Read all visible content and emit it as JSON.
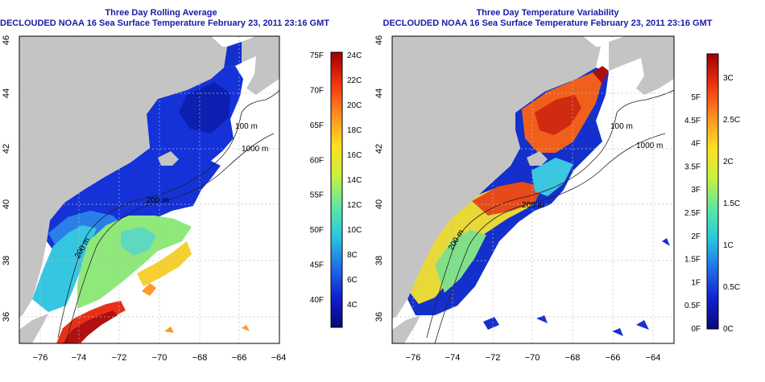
{
  "panels": [
    {
      "id": "average",
      "title": "Three Day Rolling Average",
      "subtitle": "DECLOUDED NOAA 16 Sea Surface Temperature February 23, 2011 23:16 GMT",
      "contour_labels": [
        "100 m",
        "1000 m",
        "200 m",
        "200 m"
      ],
      "colorbar": {
        "colors": [
          "#08087a",
          "#1020d0",
          "#1f70e8",
          "#27c8e0",
          "#5ee8a0",
          "#c8f040",
          "#ffe020",
          "#ff9020",
          "#f03010",
          "#a00000"
        ],
        "left_labels": [
          "75F",
          "70F",
          "65F",
          "60F",
          "55F",
          "50F",
          "45F",
          "40F"
        ],
        "right_labels": [
          "24C",
          "22C",
          "20C",
          "18C",
          "16C",
          "14C",
          "12C",
          "10C",
          "8C",
          "6C",
          "4C"
        ]
      }
    },
    {
      "id": "variability",
      "title": "Three Day Temperature Variability",
      "subtitle": "DECLOUDED NOAA 16 Sea Surface Temperature February 23, 2011 23:16 GMT",
      "contour_labels": [
        "100 m",
        "1000 m",
        "200 m",
        "200 m"
      ],
      "colorbar": {
        "colors": [
          "#08087a",
          "#1020d0",
          "#1f70e8",
          "#27c8e0",
          "#5ee8a0",
          "#c8f040",
          "#ffe020",
          "#ff9020",
          "#f03010",
          "#a00000"
        ],
        "left_labels": [
          "5F",
          "4.5F",
          "4F",
          "3.5F",
          "3F",
          "2.5F",
          "2F",
          "1.5F",
          "1F",
          "0.5F",
          "0F"
        ],
        "right_labels": [
          "3C",
          "2.5C",
          "2C",
          "1.5C",
          "1C",
          "0.5C",
          "0C"
        ]
      }
    }
  ],
  "axes": {
    "x_ticks": [
      "−76",
      "−74",
      "−72",
      "−70",
      "−68",
      "−66",
      "−64"
    ],
    "y_ticks": [
      "36",
      "38",
      "40",
      "42",
      "44",
      "46"
    ]
  },
  "colors": {
    "land": "#c4c4c4",
    "title": "#1a1aa6"
  }
}
